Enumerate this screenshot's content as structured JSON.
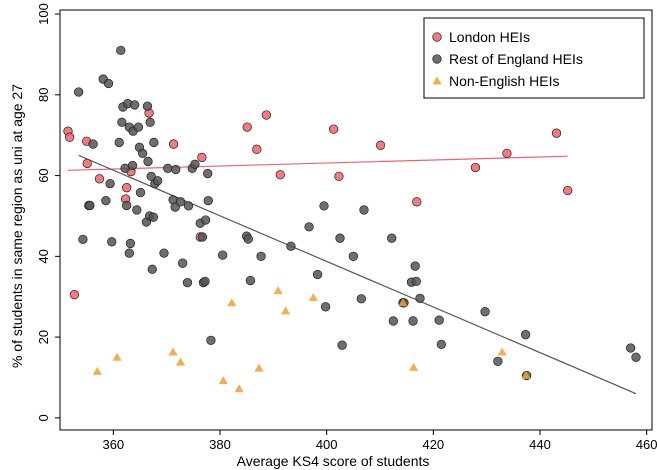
{
  "chart_data": {
    "type": "scatter",
    "xlabel": "Average KS4 score of students",
    "ylabel": "% of students in same region as uni at age 27",
    "xlim": [
      350,
      461
    ],
    "ylim": [
      -3,
      101
    ],
    "xticks": [
      360,
      380,
      400,
      420,
      440,
      460
    ],
    "yticks": [
      0,
      20,
      40,
      60,
      80,
      100
    ],
    "grid": false,
    "legend_position": "top-right",
    "series": [
      {
        "name": "London HEIs",
        "marker": "circle",
        "color": "#f0636a",
        "points": [
          [
            351.5,
            71
          ],
          [
            351.8,
            69.5
          ],
          [
            352.7,
            30.5
          ],
          [
            355,
            68.5
          ],
          [
            355.1,
            63
          ],
          [
            357.4,
            59.2
          ],
          [
            362.3,
            54.2
          ],
          [
            362.5,
            57
          ],
          [
            363.3,
            61
          ],
          [
            366.7,
            75.5
          ],
          [
            371.3,
            67.8
          ],
          [
            376.3,
            44.8
          ],
          [
            376.6,
            64.5
          ],
          [
            385.1,
            72
          ],
          [
            386.9,
            66.5
          ],
          [
            388.7,
            75
          ],
          [
            391.3,
            60.2
          ],
          [
            401.3,
            71.5
          ],
          [
            402.3,
            59.8
          ],
          [
            410.1,
            67.5
          ],
          [
            416.9,
            53.5
          ],
          [
            427.9,
            62
          ],
          [
            433.8,
            65.5
          ],
          [
            443.1,
            70.5
          ],
          [
            445.2,
            56.3
          ]
        ]
      },
      {
        "name": "Rest of England HEIs",
        "marker": "circle",
        "color": "#555555",
        "points": [
          [
            353.5,
            80.7
          ],
          [
            354.3,
            44.2
          ],
          [
            355.4,
            52.6
          ],
          [
            355.6,
            52.6
          ],
          [
            356.2,
            67.8
          ],
          [
            358.1,
            83.9
          ],
          [
            358.6,
            53.8
          ],
          [
            359.1,
            82.8
          ],
          [
            359.4,
            58
          ],
          [
            359.7,
            43.6
          ],
          [
            361.1,
            68.2
          ],
          [
            361.4,
            91
          ],
          [
            361.6,
            73.2
          ],
          [
            361.8,
            77
          ],
          [
            362.2,
            61.8
          ],
          [
            362.5,
            52.6
          ],
          [
            362.7,
            77.8
          ],
          [
            363,
            72
          ],
          [
            363,
            40.8
          ],
          [
            363.2,
            43.2
          ],
          [
            363.6,
            62.5
          ],
          [
            363.7,
            71
          ],
          [
            364,
            77.5
          ],
          [
            364.4,
            51.5
          ],
          [
            364.7,
            72
          ],
          [
            364.9,
            67
          ],
          [
            365.1,
            55.8
          ],
          [
            365.5,
            65.5
          ],
          [
            366.2,
            48.5
          ],
          [
            366.4,
            77.2
          ],
          [
            366.5,
            63.5
          ],
          [
            366.8,
            50
          ],
          [
            366.9,
            73.2
          ],
          [
            367.1,
            59.8
          ],
          [
            367.3,
            36.8
          ],
          [
            367.5,
            49.7
          ],
          [
            367.6,
            68.2
          ],
          [
            367.8,
            58
          ],
          [
            368.3,
            58.7
          ],
          [
            369.5,
            40.8
          ],
          [
            370.2,
            61.8
          ],
          [
            371.2,
            54
          ],
          [
            371.6,
            52.2
          ],
          [
            371.7,
            61.5
          ],
          [
            372.6,
            53.5
          ],
          [
            373,
            38.3
          ],
          [
            373.9,
            33.5
          ],
          [
            374.1,
            52.5
          ],
          [
            374.8,
            61.8
          ],
          [
            375.3,
            62.8
          ],
          [
            376.3,
            48.2
          ],
          [
            376.7,
            44.8
          ],
          [
            376.9,
            33.5
          ],
          [
            377.2,
            33.8
          ],
          [
            377.3,
            49
          ],
          [
            377.7,
            60.5
          ],
          [
            377.8,
            53.8
          ],
          [
            378.3,
            19.2
          ],
          [
            380.5,
            40.3
          ],
          [
            385,
            45
          ],
          [
            385.3,
            44.3
          ],
          [
            385.7,
            34
          ],
          [
            387.7,
            40
          ],
          [
            393.3,
            42.5
          ],
          [
            396.7,
            47.3
          ],
          [
            398.3,
            35.5
          ],
          [
            399.5,
            52.5
          ],
          [
            399.8,
            27.5
          ],
          [
            402.5,
            44.5
          ],
          [
            402.9,
            18
          ],
          [
            405,
            40
          ],
          [
            406.5,
            29.5
          ],
          [
            407,
            51.5
          ],
          [
            412.2,
            44.5
          ],
          [
            412.5,
            24
          ],
          [
            414.3,
            28.5
          ],
          [
            414.5,
            28.5
          ],
          [
            415.9,
            33.6
          ],
          [
            416.2,
            24
          ],
          [
            416.6,
            37.6
          ],
          [
            416.8,
            33.8
          ],
          [
            417.5,
            29.6
          ],
          [
            421.1,
            24.2
          ],
          [
            421.5,
            18.2
          ],
          [
            429.7,
            26.3
          ],
          [
            432.1,
            14
          ],
          [
            437.3,
            20.6
          ],
          [
            437.5,
            10.5
          ],
          [
            457,
            17.3
          ],
          [
            458,
            15
          ]
        ]
      },
      {
        "name": "Non-English HEIs",
        "marker": "triangle",
        "color": "#f0a030",
        "points": [
          [
            357,
            11.5
          ],
          [
            360.7,
            15
          ],
          [
            371.2,
            16.3
          ],
          [
            372.6,
            13.8
          ],
          [
            380.6,
            9.2
          ],
          [
            382.2,
            28.5
          ],
          [
            383.6,
            7.2
          ],
          [
            387.3,
            12.3
          ],
          [
            390.9,
            31.5
          ],
          [
            392.3,
            26.5
          ],
          [
            397.5,
            29.8
          ],
          [
            414.3,
            28.5
          ],
          [
            416.3,
            12.5
          ],
          [
            432.9,
            16.3
          ],
          [
            437.4,
            10.5
          ]
        ]
      }
    ],
    "fit_lines": [
      {
        "series": "London HEIs",
        "color": "#f0636a",
        "x": [
          351.5,
          445.2
        ],
        "y": [
          61.3,
          64.8
        ]
      },
      {
        "series": "Rest of England HEIs",
        "color": "#555555",
        "x": [
          353.5,
          458
        ],
        "y": [
          65,
          6
        ]
      }
    ]
  }
}
